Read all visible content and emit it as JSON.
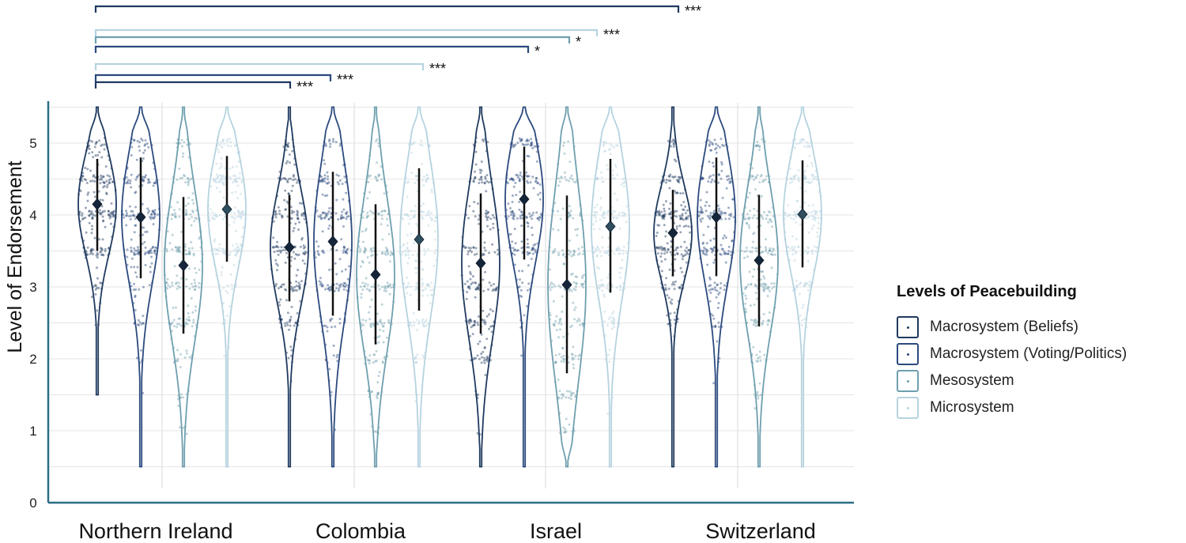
{
  "chart_data": {
    "type": "violin",
    "ylabel": "Level of Endorsement",
    "xlabel": "",
    "ylim": [
      0,
      5.5
    ],
    "y_ticks": [
      "0",
      "1",
      "2",
      "3",
      "4",
      "5"
    ],
    "categories": [
      "Northern Ireland",
      "Colombia",
      "Israel",
      "Switzerland"
    ],
    "legend_title": "Levels of Peacebuilding",
    "legend_position": "right",
    "grid": true,
    "series": [
      {
        "name": "Macrosystem (Beliefs)",
        "color": "#1f3a5f",
        "means": [
          4.15,
          3.55,
          3.33,
          3.75
        ],
        "ranges": [
          [
            3.5,
            4.78
          ],
          [
            2.8,
            4.28
          ],
          [
            2.35,
            4.3
          ],
          [
            3.15,
            4.35
          ]
        ],
        "extent": [
          [
            1.5,
            5.5
          ],
          [
            0.5,
            5.5
          ],
          [
            0.5,
            5.5
          ],
          [
            0.5,
            5.5
          ]
        ]
      },
      {
        "name": "Macrosystem (Voting/Politics)",
        "color": "#2b4a7e",
        "means": [
          3.97,
          3.63,
          4.22,
          3.97
        ],
        "ranges": [
          [
            3.12,
            4.8
          ],
          [
            2.6,
            4.6
          ],
          [
            3.38,
            4.95
          ],
          [
            3.15,
            4.8
          ]
        ],
        "extent": [
          [
            0.5,
            5.5
          ],
          [
            0.5,
            5.5
          ],
          [
            0.5,
            5.5
          ],
          [
            0.5,
            5.5
          ]
        ]
      },
      {
        "name": "Mesosystem",
        "color": "#6e9fae",
        "means": [
          3.3,
          3.17,
          3.03,
          3.37
        ],
        "ranges": [
          [
            2.35,
            4.25
          ],
          [
            2.2,
            4.15
          ],
          [
            1.8,
            4.27
          ],
          [
            2.45,
            4.28
          ]
        ],
        "extent": [
          [
            0.5,
            5.5
          ],
          [
            0.5,
            5.5
          ],
          [
            0.5,
            5.5
          ],
          [
            0.5,
            5.5
          ]
        ]
      },
      {
        "name": "Microsystem",
        "color": "#b6d3df",
        "means": [
          4.08,
          3.66,
          3.84,
          4.01
        ],
        "ranges": [
          [
            3.35,
            4.82
          ],
          [
            2.67,
            4.65
          ],
          [
            2.92,
            4.78
          ],
          [
            3.27,
            4.76
          ]
        ],
        "extent": [
          [
            0.5,
            5.5
          ],
          [
            0.5,
            5.5
          ],
          [
            0.5,
            5.5
          ],
          [
            0.5,
            5.5
          ]
        ]
      }
    ],
    "significance": [
      {
        "label": "***",
        "color": "#1f3a5f",
        "from": "Northern Ireland · Macrosystem (Beliefs)",
        "to": "Switzerland · Macrosystem (Beliefs)"
      },
      {
        "label": "***",
        "color": "#b6d3df",
        "from": "Northern Ireland · Macrosystem (Beliefs)",
        "to": "Israel · Microsystem"
      },
      {
        "label": "*",
        "color": "#6e9fae",
        "from": "Northern Ireland · Macrosystem (Beliefs)",
        "to": "Israel · Mesosystem"
      },
      {
        "label": "*",
        "color": "#2b4a7e",
        "from": "Northern Ireland · Macrosystem (Beliefs)",
        "to": "Israel · Macrosystem (Voting/Politics)"
      },
      {
        "label": "***",
        "color": "#b6d3df",
        "from": "Northern Ireland · Macrosystem (Beliefs)",
        "to": "Colombia · Microsystem"
      },
      {
        "label": "***",
        "color": "#2b4a7e",
        "from": "Northern Ireland · Macrosystem (Beliefs)",
        "to": "Colombia · Macrosystem (Voting/Politics)"
      },
      {
        "label": "***",
        "color": "#1f3a5f",
        "from": "Northern Ireland · Macrosystem (Beliefs)",
        "to": "Colombia · Macrosystem (Beliefs)"
      }
    ]
  }
}
